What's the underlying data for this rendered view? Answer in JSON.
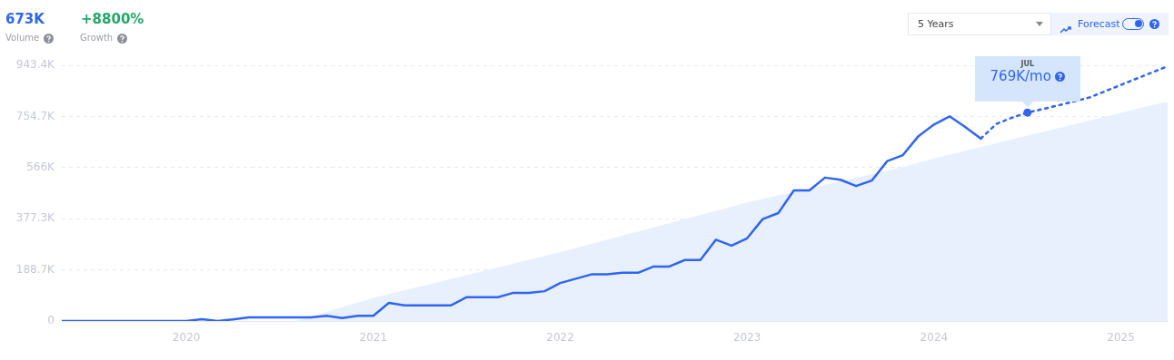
{
  "chart_data": {
    "type": "line",
    "annotations": [
      "673K",
      "Volume",
      "+8800%",
      "Growth",
      "5 Years",
      "Forecast",
      "JUL",
      {
        "text": "769K/mo",
        "x": "2024-07",
        "y": 769000
      }
    ],
    "xlim": [
      "2019-05",
      "2025-04"
    ],
    "xticks": [
      "2020",
      "2021",
      "2022",
      "2023",
      "2024",
      "2025"
    ],
    "ylim": [
      0,
      943400
    ],
    "yticks": [
      0,
      {
        "value": 188700,
        "label": "188.7K"
      },
      {
        "value": 377300,
        "label": "377.3K"
      },
      {
        "value": 566000,
        "label": "566K"
      },
      {
        "value": 754700,
        "label": "754.7K"
      },
      {
        "value": 943400,
        "label": "943.4K"
      }
    ],
    "grid": "y",
    "legend": false,
    "marker": "none",
    "series": [
      {
        "type": "area",
        "color": "#e9f0fd",
        "x": [
          "2020-08",
          "2021-01",
          "2022-01",
          "2023-01",
          "2023-11",
          "2024-01",
          "2025-04"
        ],
        "values": [
          0,
          85000,
          254000,
          437000,
          568000,
          600000,
          810000
        ]
      },
      {
        "type": "line",
        "color": "#2f65f2",
        "line_style": "solid",
        "x": [
          "2019-05",
          "2019-06",
          "2019-07",
          "2019-08",
          "2019-09",
          "2019-10",
          "2019-11",
          "2019-12",
          "2020-01",
          "2020-02",
          "2020-03",
          "2020-04",
          "2020-05",
          "2020-06",
          "2020-07",
          "2020-08",
          "2020-09",
          "2020-10",
          "2020-11",
          "2020-12",
          "2021-01",
          "2021-02",
          "2021-03",
          "2021-04",
          "2021-05",
          "2021-06",
          "2021-07",
          "2021-08",
          "2021-09",
          "2021-10",
          "2021-11",
          "2021-12",
          "2022-01",
          "2022-02",
          "2022-03",
          "2022-04",
          "2022-05",
          "2022-06",
          "2022-07",
          "2022-08",
          "2022-09",
          "2022-10",
          "2022-11",
          "2022-12",
          "2023-01",
          "2023-02",
          "2023-03",
          "2023-04",
          "2023-05",
          "2023-06",
          "2023-07",
          "2023-08",
          "2023-09",
          "2023-10",
          "2023-11",
          "2023-12",
          "2024-01",
          "2024-02",
          "2024-03",
          "2024-04"
        ],
        "values": [
          0,
          0,
          0,
          0,
          0,
          0,
          0,
          0,
          0,
          7000,
          0,
          6000,
          13000,
          13000,
          13000,
          13000,
          13000,
          19000,
          11000,
          19000,
          19000,
          67000,
          58000,
          58000,
          58000,
          58000,
          88000,
          88000,
          88000,
          104000,
          104000,
          110000,
          140000,
          156000,
          172000,
          172000,
          178000,
          178000,
          201000,
          201000,
          225000,
          225000,
          300000,
          278000,
          305000,
          376000,
          398000,
          482000,
          482000,
          529000,
          521000,
          498000,
          518000,
          590000,
          612000,
          682000,
          725000,
          755000,
          716000,
          673000
        ]
      },
      {
        "type": "line",
        "color": "#2f65f2",
        "line_style": "dotted",
        "x": [
          "2024-04",
          "2024-05",
          "2024-06",
          "2024-07",
          "2024-08",
          "2024-09",
          "2024-10",
          "2024-11",
          "2024-12",
          "2025-01",
          "2025-02",
          "2025-03",
          "2025-04"
        ],
        "values": [
          673000,
          727000,
          750000,
          769000,
          782000,
          796000,
          810000,
          825000,
          848000,
          871000,
          894000,
          917000,
          940000
        ]
      }
    ]
  }
}
